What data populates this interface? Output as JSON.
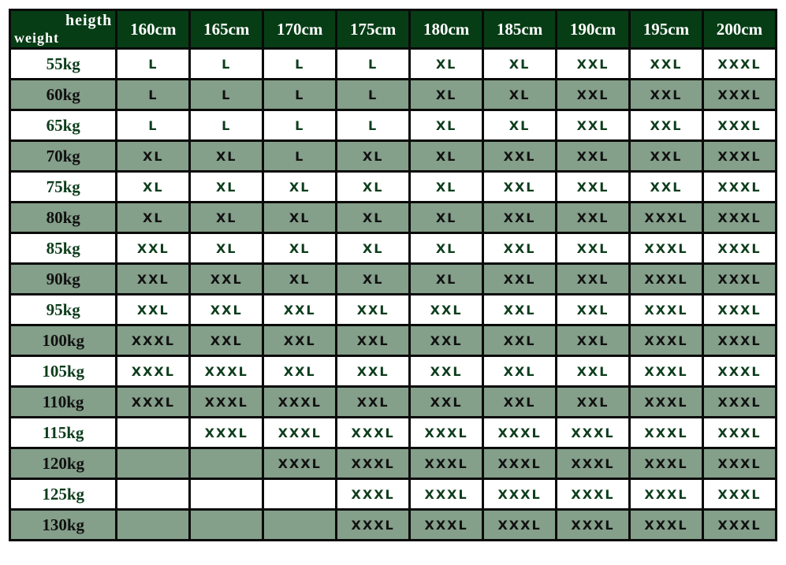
{
  "header": {
    "corner_top": "heigth",
    "corner_bottom": "weight",
    "heights": [
      "160cm",
      "165cm",
      "170cm",
      "175cm",
      "180cm",
      "185cm",
      "190cm",
      "195cm",
      "200cm"
    ]
  },
  "colors": {
    "header_bg": "#063d15",
    "dark_row_bg": "#849f8a",
    "light_row_bg": "#ffffff",
    "light_row_text": "#0d3d1c",
    "dark_row_text": "#111111"
  },
  "rows": [
    {
      "weight": "55kg",
      "sizes": [
        "L",
        "L",
        "L",
        "L",
        "XL",
        "XL",
        "XXL",
        "XXL",
        "XXXL"
      ]
    },
    {
      "weight": "60kg",
      "sizes": [
        "L",
        "L",
        "L",
        "L",
        "XL",
        "XL",
        "XXL",
        "XXL",
        "XXXL"
      ]
    },
    {
      "weight": "65kg",
      "sizes": [
        "L",
        "L",
        "L",
        "L",
        "XL",
        "XL",
        "XXL",
        "XXL",
        "XXXL"
      ]
    },
    {
      "weight": "70kg",
      "sizes": [
        "XL",
        "XL",
        "L",
        "XL",
        "XL",
        "XXL",
        "XXL",
        "XXL",
        "XXXL"
      ]
    },
    {
      "weight": "75kg",
      "sizes": [
        "XL",
        "XL",
        "XL",
        "XL",
        "XL",
        "XXL",
        "XXL",
        "XXL",
        "XXXL"
      ]
    },
    {
      "weight": "80kg",
      "sizes": [
        "XL",
        "XL",
        "XL",
        "XL",
        "XL",
        "XXL",
        "XXL",
        "XXXL",
        "XXXL"
      ]
    },
    {
      "weight": "85kg",
      "sizes": [
        "XXL",
        "XL",
        "XL",
        "XL",
        "XL",
        "XXL",
        "XXL",
        "XXXL",
        "XXXL"
      ]
    },
    {
      "weight": "90kg",
      "sizes": [
        "XXL",
        "XXL",
        "XL",
        "XL",
        "XL",
        "XXL",
        "XXL",
        "XXXL",
        "XXXL"
      ]
    },
    {
      "weight": "95kg",
      "sizes": [
        "XXL",
        "XXL",
        "XXL",
        "XXL",
        "XXL",
        "XXL",
        "XXL",
        "XXXL",
        "XXXL"
      ]
    },
    {
      "weight": "100kg",
      "sizes": [
        "XXXL",
        "XXL",
        "XXL",
        "XXL",
        "XXL",
        "XXL",
        "XXL",
        "XXXL",
        "XXXL"
      ]
    },
    {
      "weight": "105kg",
      "sizes": [
        "XXXL",
        "XXXL",
        "XXL",
        "XXL",
        "XXL",
        "XXL",
        "XXL",
        "XXXL",
        "XXXL"
      ]
    },
    {
      "weight": "110kg",
      "sizes": [
        "XXXL",
        "XXXL",
        "XXXL",
        "XXL",
        "XXL",
        "XXL",
        "XXL",
        "XXXL",
        "XXXL"
      ]
    },
    {
      "weight": "115kg",
      "sizes": [
        "",
        "XXXL",
        "XXXL",
        "XXXL",
        "XXXL",
        "XXXL",
        "XXXL",
        "XXXL",
        "XXXL"
      ]
    },
    {
      "weight": "120kg",
      "sizes": [
        "",
        "",
        "XXXL",
        "XXXL",
        "XXXL",
        "XXXL",
        "XXXL",
        "XXXL",
        "XXXL"
      ]
    },
    {
      "weight": "125kg",
      "sizes": [
        "",
        "",
        "",
        "XXXL",
        "XXXL",
        "XXXL",
        "XXXL",
        "XXXL",
        "XXXL"
      ]
    },
    {
      "weight": "130kg",
      "sizes": [
        "",
        "",
        "",
        "XXXL",
        "XXXL",
        "XXXL",
        "XXXL",
        "XXXL",
        "XXXL"
      ]
    }
  ]
}
